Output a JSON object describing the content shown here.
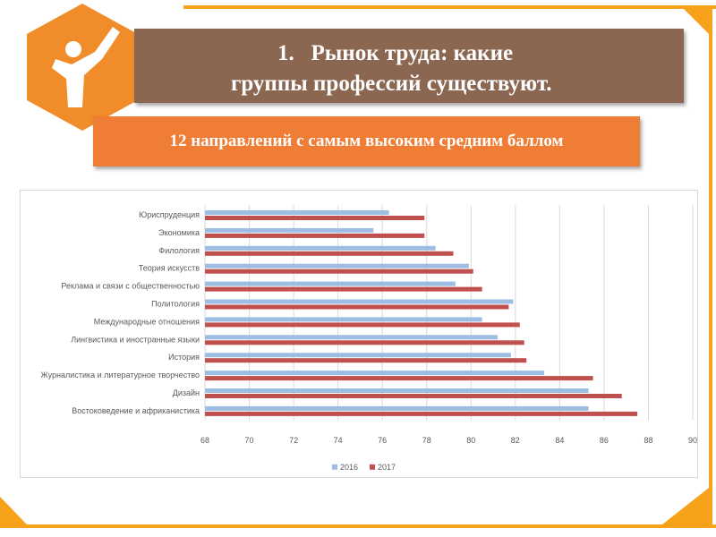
{
  "header": {
    "title_line1": "1.   Рынок труда: какие",
    "title_line2": "группы профессий существуют.",
    "subtitle": "12 направлений с самым высоким средним баллом"
  },
  "colors": {
    "frame": "#f7a21b",
    "logo": "#f08c2a",
    "title_bg": "#8b6651",
    "subtitle_bg": "#ef7d35",
    "series_2016": "#9dbde3",
    "series_2017": "#c0504d",
    "grid": "#d9d9d9",
    "text": "#595959"
  },
  "logo_icon": "person-raised-fist-icon",
  "chart_data": {
    "type": "bar",
    "orientation": "horizontal",
    "categories": [
      "Юриспруденция",
      "Экономика",
      "Филология",
      "Теория искусств",
      "Реклама и связи с общественностью",
      "Политология",
      "Международные отношения",
      "Лингвистика и иностранные языки",
      "История",
      "Журналистика и литературное творчество",
      "Дизайн",
      "Востоковедение и африканистика"
    ],
    "series": [
      {
        "name": "2016",
        "values": [
          76.3,
          75.6,
          78.4,
          79.9,
          79.3,
          81.9,
          80.5,
          81.2,
          81.8,
          83.3,
          85.3,
          85.3
        ]
      },
      {
        "name": "2017",
        "values": [
          77.9,
          77.9,
          79.2,
          80.1,
          80.5,
          81.7,
          82.2,
          82.4,
          82.5,
          85.5,
          86.8,
          87.5
        ]
      }
    ],
    "xlim": [
      68,
      90
    ],
    "xticks": [
      68,
      70,
      72,
      74,
      76,
      78,
      80,
      82,
      84,
      86,
      88,
      90
    ],
    "grid": true,
    "legend": "bottom-center"
  }
}
